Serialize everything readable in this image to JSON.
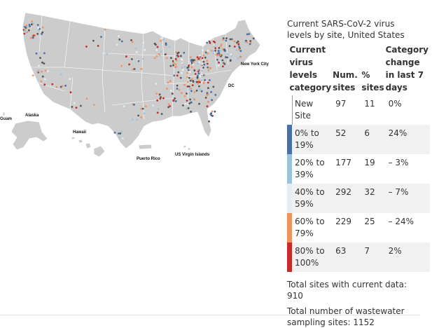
{
  "panel": {
    "title": "Current SARS-CoV-2 virus levels by site, United States",
    "headers": {
      "category": "Current virus levels category",
      "num_sites": "Num. sites",
      "pct_sites": "% sites",
      "change": "Category change in last 7 days"
    },
    "rows": [
      {
        "category": "New Site",
        "num_sites": "97",
        "pct_sites": "11",
        "change": "0%",
        "color": "#ffffff"
      },
      {
        "category": "0% to 19%",
        "num_sites": "52",
        "pct_sites": "6",
        "change": "24%",
        "color": "#4a6fa5"
      },
      {
        "category": "20% to 39%",
        "num_sites": "177",
        "pct_sites": "19",
        "change": "– 3%",
        "color": "#9dc3dc"
      },
      {
        "category": "40% to 59%",
        "num_sites": "292",
        "pct_sites": "32",
        "change": "– 7%",
        "color": "#e3eef6"
      },
      {
        "category": "60% to 79%",
        "num_sites": "229",
        "pct_sites": "25",
        "change": "– 24%",
        "color": "#ee9460"
      },
      {
        "category": "80% to 100%",
        "num_sites": "63",
        "pct_sites": "7",
        "change": "2%",
        "color": "#c82a27"
      }
    ],
    "total_current": "Total sites with current data: 910",
    "total_sampling": "Total number of wastewater sampling sites: 1152"
  },
  "map": {
    "labels": {
      "new_york_city": "New York City",
      "dc": "DC",
      "guam": "Guam",
      "alaska": "Alaska",
      "hawaii": "Hawaii",
      "puerto_rico": "Puerto Rico",
      "us_virgin_islands": "US Virgin Islands"
    },
    "colors": {
      "land": "#cccccc",
      "border": "#ffffff",
      "no_data_site": "#555555"
    }
  }
}
